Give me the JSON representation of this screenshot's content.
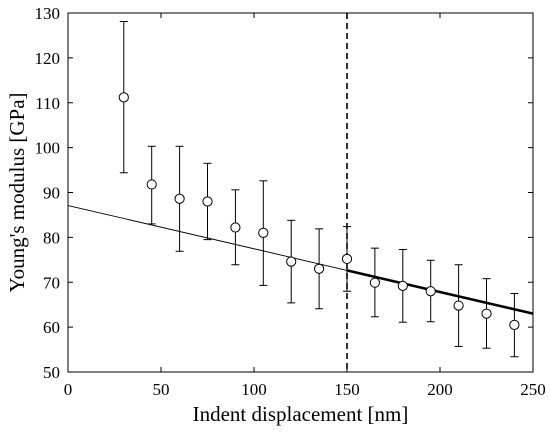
{
  "chart_data": {
    "type": "scatter",
    "xlabel": "Indent displacement [nm]",
    "ylabel": "Young's modulus [GPa]",
    "xlim": [
      0,
      250
    ],
    "ylim": [
      50,
      130
    ],
    "xticks": [
      0,
      50,
      100,
      150,
      200,
      250
    ],
    "yticks": [
      50,
      60,
      70,
      80,
      90,
      100,
      110,
      120,
      130
    ],
    "grid": false,
    "marker": "open-circle",
    "points": [
      {
        "x": 30,
        "y": 111.2,
        "low": 94.4,
        "high": 128.1
      },
      {
        "x": 45,
        "y": 91.8,
        "low": 83.0,
        "high": 100.3
      },
      {
        "x": 60,
        "y": 88.6,
        "low": 76.9,
        "high": 100.3
      },
      {
        "x": 75,
        "y": 88.0,
        "low": 79.5,
        "high": 96.5
      },
      {
        "x": 90,
        "y": 82.2,
        "low": 73.9,
        "high": 90.6
      },
      {
        "x": 105,
        "y": 81.0,
        "low": 69.3,
        "high": 92.6
      },
      {
        "x": 120,
        "y": 74.6,
        "low": 65.4,
        "high": 83.8
      },
      {
        "x": 135,
        "y": 73.0,
        "low": 64.1,
        "high": 81.9
      },
      {
        "x": 150,
        "y": 75.2,
        "low": 68.0,
        "high": 82.4
      },
      {
        "x": 165,
        "y": 69.9,
        "low": 62.3,
        "high": 77.6
      },
      {
        "x": 180,
        "y": 69.2,
        "low": 61.1,
        "high": 77.3
      },
      {
        "x": 195,
        "y": 68.0,
        "low": 61.2,
        "high": 74.9
      },
      {
        "x": 210,
        "y": 64.8,
        "low": 55.7,
        "high": 73.9
      },
      {
        "x": 225,
        "y": 63.0,
        "low": 55.3,
        "high": 70.8
      },
      {
        "x": 240,
        "y": 60.5,
        "low": 53.4,
        "high": 67.5
      }
    ],
    "fit_line": {
      "x": [
        0,
        250
      ],
      "y": [
        87.1,
        63.0
      ],
      "thin_range": [
        0,
        150
      ],
      "thick_range": [
        150,
        250
      ]
    },
    "vertical_line": {
      "x": 150,
      "style": "dashed"
    }
  }
}
